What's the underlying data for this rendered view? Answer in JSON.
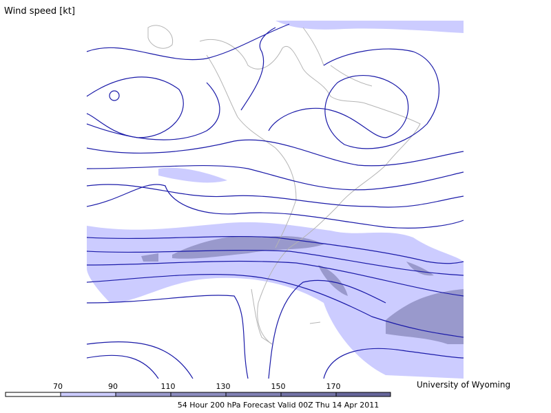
{
  "title": "Wind speed [kt]",
  "credit": "University of Wyoming",
  "caption": "54 Hour 200 hPa Forecast Valid 00Z Thu 14 Apr 2011",
  "legend": {
    "ticks": [
      70,
      90,
      110,
      130,
      150,
      170
    ],
    "colors": [
      "#ffffff",
      "#ccccff",
      "#9999cc",
      "#8c8cbf",
      "#8080b3",
      "#7373a6",
      "#66669a"
    ]
  }
}
